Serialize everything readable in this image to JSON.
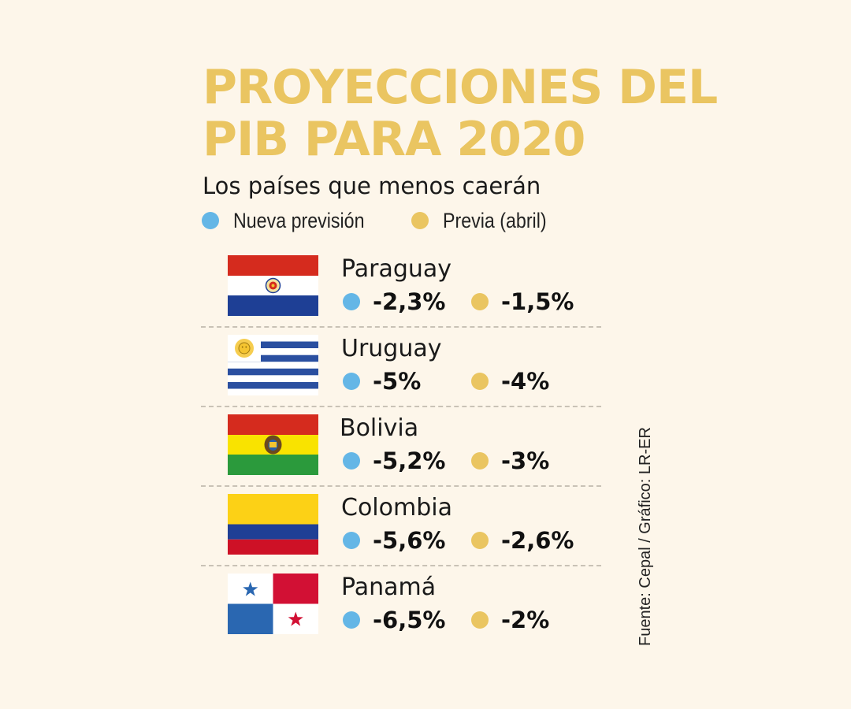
{
  "colors": {
    "nueva": "#64b6e6",
    "previa": "#eac561",
    "title": "#eac561"
  },
  "chart_data": {
    "type": "table",
    "title": [
      "PROYECCIONES DEL",
      "PIB PARA 2020"
    ],
    "subtitle": "Los países que menos caerán",
    "legend": [
      {
        "name": "Nueva previsión",
        "color": "#64b6e6"
      },
      {
        "name": "Previa (abril)",
        "color": "#eac561"
      }
    ],
    "categories": [
      "Paraguay",
      "Uruguay",
      "Bolivia",
      "Colombia",
      "Panamá"
    ],
    "series": [
      {
        "name": "Nueva previsión",
        "values": [
          -2.3,
          -5,
          -5.2,
          -5.6,
          -6.5
        ],
        "labels": [
          "-2,3%",
          "-5%",
          "-5,2%",
          "-5,6%",
          "-6,5%"
        ]
      },
      {
        "name": "Previa (abril)",
        "values": [
          -1.5,
          -4,
          -3,
          -2.6,
          -2
        ],
        "labels": [
          "-1,5%",
          "-4%",
          "-3%",
          "-2,6%",
          "-2%"
        ]
      }
    ],
    "flags": [
      "paraguay-flag-icon",
      "uruguay-flag-icon",
      "bolivia-flag-icon",
      "colombia-flag-icon",
      "panama-flag-icon"
    ],
    "source": "Fuente: Cepal / Gráfico: LR-ER"
  }
}
